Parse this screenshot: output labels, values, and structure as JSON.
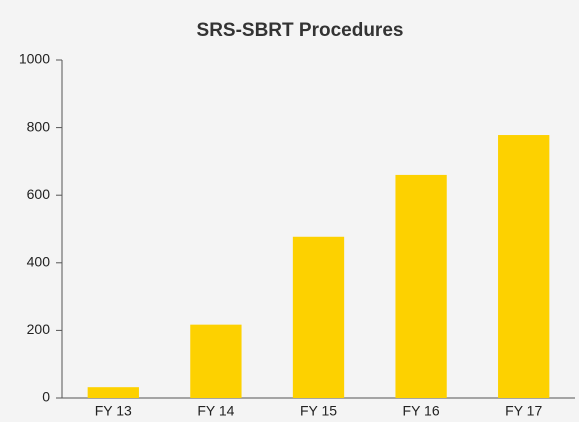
{
  "chart_data": {
    "type": "bar",
    "title": "SRS-SBRT Procedures",
    "categories": [
      "FY 13",
      "FY 14",
      "FY 15",
      "FY 16",
      "FY 17"
    ],
    "values": [
      32,
      217,
      477,
      660,
      778
    ],
    "color": "#fdd100",
    "ylim": [
      0,
      1000
    ],
    "yticks": [
      0,
      200,
      400,
      600,
      800,
      1000
    ],
    "grid": false
  }
}
